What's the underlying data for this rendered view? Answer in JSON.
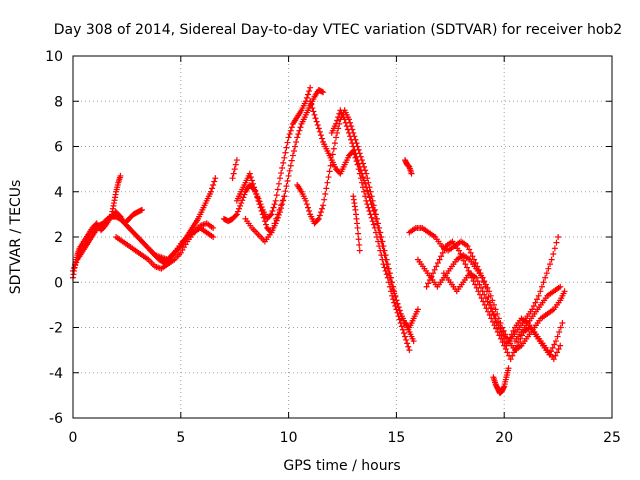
{
  "chart_data": {
    "type": "scatter",
    "title": "Day 308 of 2014, Sidereal Day-to-day VTEC variation (SDTVAR) for receiver hob2",
    "xlabel": "GPS time / hours",
    "ylabel": "SDTVAR / TECUs",
    "xlim": [
      0,
      25
    ],
    "ylim": [
      -6,
      10
    ],
    "xticks": [
      "0",
      "5",
      "10",
      "15",
      "20",
      "25"
    ],
    "yticks": [
      "-6",
      "-4",
      "-2",
      "0",
      "2",
      "4",
      "6",
      "8",
      "10"
    ],
    "grid": true,
    "marker": "+",
    "color": "#ff0000",
    "series": [
      {
        "x": [
          0.0,
          0.1,
          0.2,
          0.3,
          0.5,
          0.7,
          0.9,
          1.1,
          1.3,
          1.5,
          1.7,
          1.9,
          2.0,
          2.2,
          2.4,
          2.6,
          2.8,
          3.0,
          3.2
        ],
        "y": [
          0.2,
          0.8,
          1.2,
          1.5,
          1.8,
          2.1,
          2.4,
          2.6,
          2.3,
          2.5,
          2.8,
          3.0,
          3.1,
          2.9,
          2.6,
          2.8,
          3.0,
          3.1,
          3.2
        ]
      },
      {
        "x": [
          0.0,
          0.2,
          0.4,
          0.6,
          0.8,
          1.0,
          1.2,
          1.4,
          1.6,
          1.8,
          2.0,
          2.2,
          2.4,
          2.6,
          2.8,
          3.0,
          3.2,
          3.4,
          3.6,
          3.8,
          4.0,
          4.2,
          4.4,
          4.6,
          4.8,
          5.0,
          5.2,
          5.4,
          5.6,
          5.8,
          6.0,
          6.2,
          6.4,
          6.6
        ],
        "y": [
          0.5,
          1.0,
          1.3,
          1.6,
          1.9,
          2.2,
          2.5,
          2.6,
          2.8,
          2.9,
          2.9,
          2.8,
          2.6,
          2.4,
          2.2,
          2.0,
          1.8,
          1.6,
          1.4,
          1.2,
          1.0,
          0.9,
          1.0,
          1.2,
          1.4,
          1.6,
          1.9,
          2.2,
          2.5,
          2.8,
          3.2,
          3.6,
          4.0,
          4.6
        ]
      },
      {
        "x": [
          1.8,
          1.9,
          2.0,
          2.1,
          2.2
        ],
        "y": [
          3.0,
          3.5,
          4.0,
          4.4,
          4.7
        ]
      },
      {
        "x": [
          2.0,
          2.3,
          2.6,
          2.9,
          3.2,
          3.5,
          3.8,
          4.1,
          4.4,
          4.7,
          5.0,
          5.3,
          5.6,
          5.9,
          6.2,
          6.5
        ],
        "y": [
          2.0,
          1.8,
          1.6,
          1.4,
          1.2,
          1.0,
          0.7,
          0.6,
          0.8,
          1.0,
          1.3,
          1.8,
          2.2,
          2.4,
          2.2,
          2.0
        ]
      },
      {
        "x": [
          3.5,
          3.8,
          4.1,
          4.4,
          4.7,
          5.0,
          5.3,
          5.6,
          5.9,
          6.2,
          6.5
        ],
        "y": [
          1.5,
          1.2,
          1.1,
          1.0,
          1.3,
          1.7,
          2.0,
          2.2,
          2.5,
          2.6,
          2.4
        ]
      },
      {
        "x": [
          7.0,
          7.2,
          7.4,
          7.6,
          7.8,
          8.0,
          8.2,
          8.4,
          8.6,
          8.8,
          9.0,
          9.2,
          9.4,
          9.6,
          9.8,
          10.0,
          10.2,
          10.4,
          10.6,
          10.8,
          11.0
        ],
        "y": [
          2.8,
          2.7,
          2.8,
          3.0,
          3.5,
          4.0,
          4.3,
          4.1,
          3.7,
          3.2,
          2.8,
          3.0,
          3.6,
          4.6,
          5.5,
          6.4,
          7.0,
          7.3,
          7.6,
          8.0,
          8.6
        ]
      },
      {
        "x": [
          7.6,
          7.8,
          8.0,
          8.2,
          8.4,
          8.6,
          8.8,
          9.0,
          9.2,
          9.4,
          9.6,
          9.8,
          10.0,
          10.2,
          10.4,
          10.6,
          10.8,
          11.0,
          11.2,
          11.4,
          11.6
        ],
        "y": [
          3.6,
          4.0,
          4.4,
          4.8,
          4.2,
          3.6,
          3.0,
          2.4,
          2.2,
          2.6,
          3.1,
          3.8,
          4.7,
          5.6,
          6.4,
          7.0,
          7.4,
          7.8,
          8.2,
          8.5,
          8.4
        ]
      },
      {
        "x": [
          7.4,
          7.6
        ],
        "y": [
          4.6,
          5.4
        ]
      },
      {
        "x": [
          8.0,
          8.3,
          8.6,
          8.9,
          9.2,
          9.5,
          9.8
        ],
        "y": [
          2.8,
          2.4,
          2.1,
          1.8,
          2.2,
          3.0,
          3.8
        ]
      },
      {
        "x": [
          10.4,
          10.6,
          10.8,
          11.0,
          11.2,
          11.4,
          11.6,
          11.8,
          12.0,
          12.2,
          12.4,
          12.6,
          12.8,
          13.0,
          13.2,
          13.4,
          13.6,
          13.8,
          14.0,
          14.2,
          14.4,
          14.6,
          14.8,
          15.0,
          15.2,
          15.4,
          15.6,
          15.8,
          16.0
        ],
        "y": [
          4.3,
          4.0,
          3.6,
          3.0,
          2.6,
          2.8,
          3.4,
          4.4,
          5.4,
          6.4,
          7.2,
          7.6,
          7.2,
          6.6,
          6.0,
          5.4,
          4.8,
          4.0,
          3.2,
          2.4,
          1.6,
          0.8,
          0.0,
          -0.8,
          -1.4,
          -1.8,
          -2.0,
          -1.6,
          -1.2
        ]
      },
      {
        "x": [
          11.0,
          11.2,
          11.4,
          11.6,
          11.8,
          12.0,
          12.2,
          12.4,
          12.6,
          12.8,
          13.0,
          13.2,
          13.4,
          13.6,
          13.8,
          14.0,
          14.2,
          14.4,
          14.6,
          14.8,
          15.0,
          15.2,
          15.4,
          15.6
        ],
        "y": [
          8.0,
          7.4,
          6.8,
          6.2,
          5.8,
          5.4,
          5.0,
          4.8,
          5.2,
          5.6,
          5.8,
          5.2,
          4.4,
          3.6,
          3.0,
          2.4,
          1.6,
          0.8,
          0.2,
          -0.6,
          -1.2,
          -1.8,
          -2.4,
          -3.0
        ]
      },
      {
        "x": [
          12.0,
          12.2,
          12.4,
          12.6,
          12.8,
          13.0,
          13.2,
          13.4,
          13.6,
          13.8,
          14.0,
          14.2,
          14.4,
          14.6,
          14.8,
          15.0,
          15.2,
          15.4,
          15.6,
          15.8
        ],
        "y": [
          6.6,
          7.0,
          7.6,
          7.2,
          6.6,
          6.0,
          5.4,
          4.8,
          4.2,
          3.6,
          3.0,
          2.2,
          1.4,
          0.6,
          -0.2,
          -0.8,
          -1.4,
          -1.8,
          -2.2,
          -2.6
        ]
      },
      {
        "x": [
          13.0,
          13.1,
          13.2,
          13.3
        ],
        "y": [
          3.8,
          3.2,
          2.4,
          1.4
        ]
      },
      {
        "x": [
          15.4,
          15.5,
          15.6,
          15.7
        ],
        "y": [
          5.4,
          5.2,
          5.1,
          4.8
        ]
      },
      {
        "x": [
          15.6,
          15.9,
          16.2,
          16.5,
          16.8,
          17.1,
          17.4,
          17.7,
          18.0,
          18.3,
          18.6,
          18.9,
          19.2,
          19.5,
          19.8,
          20.1,
          20.4,
          20.7,
          21.0,
          21.3,
          21.6,
          21.9,
          22.2,
          22.5
        ],
        "y": [
          2.2,
          2.4,
          2.4,
          2.2,
          2.0,
          1.6,
          1.4,
          1.6,
          1.8,
          1.6,
          1.0,
          0.4,
          -0.4,
          -1.4,
          -2.2,
          -2.8,
          -2.4,
          -2.0,
          -1.6,
          -1.2,
          -0.6,
          0.2,
          1.0,
          2.0
        ]
      },
      {
        "x": [
          16.0,
          16.3,
          16.6,
          16.9,
          17.2,
          17.5,
          17.8,
          18.1,
          18.4,
          18.7,
          19.0,
          19.3,
          19.6,
          19.9,
          20.2,
          20.5,
          20.8,
          21.1,
          21.4,
          21.7,
          22.0,
          22.3,
          22.6,
          22.8
        ],
        "y": [
          1.0,
          0.6,
          0.2,
          -0.2,
          0.2,
          0.6,
          1.0,
          1.2,
          1.0,
          0.6,
          0.2,
          -0.4,
          -1.2,
          -2.0,
          -2.6,
          -3.0,
          -2.8,
          -2.4,
          -2.0,
          -1.6,
          -1.4,
          -1.2,
          -0.8,
          -0.4
        ]
      },
      {
        "x": [
          16.4,
          16.7,
          17.0,
          17.3,
          17.6,
          17.9,
          18.2,
          18.5,
          18.8,
          19.1,
          19.4,
          19.7,
          20.0,
          20.3,
          20.6,
          20.9,
          21.2,
          21.5,
          21.8,
          22.1,
          22.4,
          22.7
        ],
        "y": [
          -0.2,
          0.4,
          1.0,
          1.6,
          1.8,
          1.4,
          0.8,
          0.2,
          -0.4,
          -1.0,
          -1.6,
          -2.2,
          -2.8,
          -3.4,
          -2.8,
          -2.2,
          -2.0,
          -2.4,
          -2.8,
          -3.2,
          -2.6,
          -1.8
        ]
      },
      {
        "x": [
          17.2,
          17.5,
          17.8,
          18.1,
          18.4,
          18.7,
          19.0,
          19.3,
          19.6,
          19.9,
          20.2,
          20.5,
          20.8,
          21.1,
          21.4,
          21.7,
          22.0,
          22.3,
          22.6
        ],
        "y": [
          0.4,
          0.0,
          -0.4,
          0.0,
          0.4,
          0.2,
          -0.4,
          -1.0,
          -1.6,
          -2.2,
          -2.6,
          -2.0,
          -1.6,
          -1.8,
          -2.2,
          -2.6,
          -3.0,
          -3.4,
          -2.8
        ]
      },
      {
        "x": [
          19.5,
          19.6,
          19.7,
          19.8,
          19.9,
          20.0,
          20.1,
          20.2
        ],
        "y": [
          -4.2,
          -4.5,
          -4.7,
          -4.9,
          -4.8,
          -4.6,
          -4.2,
          -3.8
        ]
      },
      {
        "x": [
          20.5,
          20.8,
          21.1,
          21.4,
          21.7,
          22.0,
          22.3,
          22.6
        ],
        "y": [
          -2.6,
          -2.2,
          -1.8,
          -1.4,
          -1.0,
          -0.6,
          -0.4,
          -0.2
        ]
      }
    ]
  }
}
